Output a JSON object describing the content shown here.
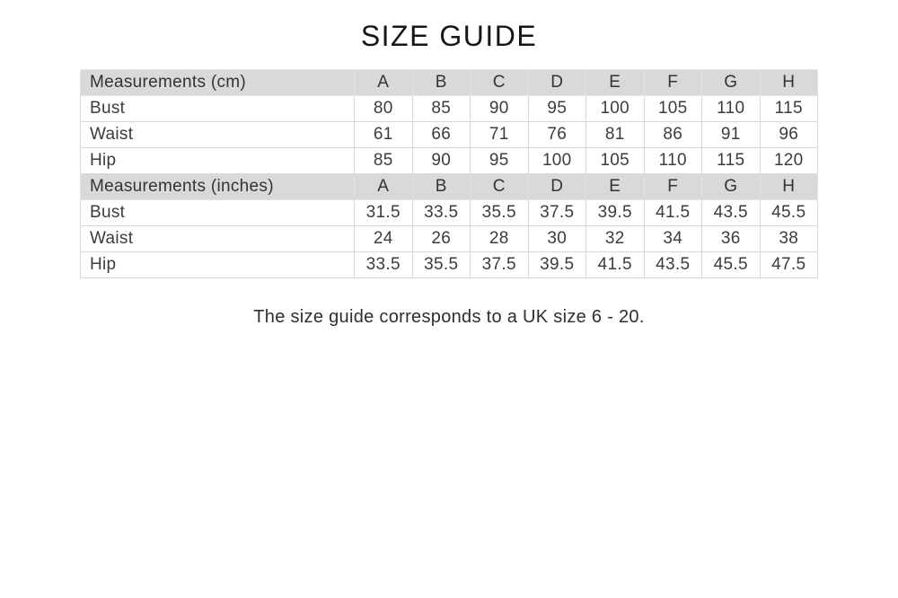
{
  "title": "SIZE GUIDE",
  "footer_note": "The size guide corresponds to a UK size 6 - 20.",
  "colors": {
    "header_background": "#d9d9d9",
    "grid_border": "#d8d8d8",
    "text": "#3c3c3c"
  },
  "table": {
    "size_labels": [
      "A",
      "B",
      "C",
      "D",
      "E",
      "F",
      "G",
      "H"
    ],
    "sections": [
      {
        "header": "Measurements (cm)",
        "rows": [
          {
            "label": "Bust",
            "values": [
              "80",
              "85",
              "90",
              "95",
              "100",
              "105",
              "110",
              "115"
            ]
          },
          {
            "label": "Waist",
            "values": [
              "61",
              "66",
              "71",
              "76",
              "81",
              "86",
              "91",
              "96"
            ]
          },
          {
            "label": "Hip",
            "values": [
              "85",
              "90",
              "95",
              "100",
              "105",
              "110",
              "115",
              "120"
            ]
          }
        ]
      },
      {
        "header": "Measurements (inches)",
        "rows": [
          {
            "label": "Bust",
            "values": [
              "31.5",
              "33.5",
              "35.5",
              "37.5",
              "39.5",
              "41.5",
              "43.5",
              "45.5"
            ]
          },
          {
            "label": "Waist",
            "values": [
              "24",
              "26",
              "28",
              "30",
              "32",
              "34",
              "36",
              "38"
            ]
          },
          {
            "label": "Hip",
            "values": [
              "33.5",
              "35.5",
              "37.5",
              "39.5",
              "41.5",
              "43.5",
              "45.5",
              "47.5"
            ]
          }
        ]
      }
    ]
  }
}
